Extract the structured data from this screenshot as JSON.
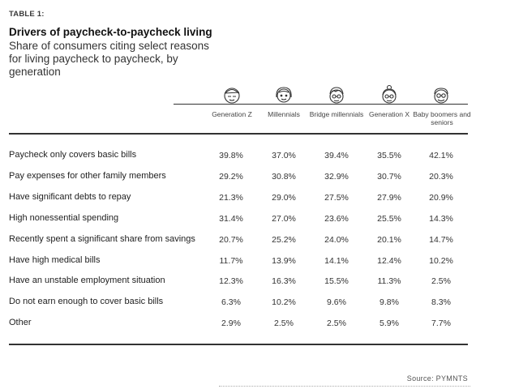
{
  "table_label": "TABLE 1:",
  "title": "Drivers of paycheck-to-paycheck living",
  "subtitle": "Share of consumers citing select reasons for living paycheck to paycheck, by generation",
  "generations": [
    {
      "name": "Generation Z",
      "icon": "gen-z-avatar-icon"
    },
    {
      "name": "Millennials",
      "icon": "millennial-avatar-icon"
    },
    {
      "name": "Bridge millennials",
      "icon": "bridge-millennial-avatar-icon"
    },
    {
      "name": "Generation X",
      "icon": "gen-x-avatar-icon"
    },
    {
      "name": "Baby boomers and seniors",
      "icon": "boomer-avatar-icon"
    }
  ],
  "rows": [
    {
      "label": "Paycheck only covers basic bills",
      "values": [
        "39.8%",
        "37.0%",
        "39.4%",
        "35.5%",
        "42.1%"
      ]
    },
    {
      "label": "Pay expenses for other family members",
      "values": [
        "29.2%",
        "30.8%",
        "32.9%",
        "30.7%",
        "20.3%"
      ]
    },
    {
      "label": "Have significant debts to repay",
      "values": [
        "21.3%",
        "29.0%",
        "27.5%",
        "27.9%",
        "20.9%"
      ]
    },
    {
      "label": "High nonessential spending",
      "values": [
        "31.4%",
        "27.0%",
        "23.6%",
        "25.5%",
        "14.3%"
      ]
    },
    {
      "label": "Recently spent a significant share from savings",
      "values": [
        "20.7%",
        "25.2%",
        "24.0%",
        "20.1%",
        "14.7%"
      ]
    },
    {
      "label": "Have high medical bills",
      "values": [
        "11.7%",
        "13.9%",
        "14.1%",
        "12.4%",
        "10.2%"
      ]
    },
    {
      "label": "Have an unstable employment situation",
      "values": [
        "12.3%",
        "16.3%",
        "15.5%",
        "11.3%",
        "2.5%"
      ]
    },
    {
      "label": "Do not earn enough to cover basic bills",
      "values": [
        "6.3%",
        "10.2%",
        "9.6%",
        "9.8%",
        "8.3%"
      ]
    },
    {
      "label": "Other",
      "values": [
        "2.9%",
        "2.5%",
        "2.5%",
        "5.9%",
        "7.7%"
      ]
    }
  ],
  "source": "Source: PYMNTS"
}
